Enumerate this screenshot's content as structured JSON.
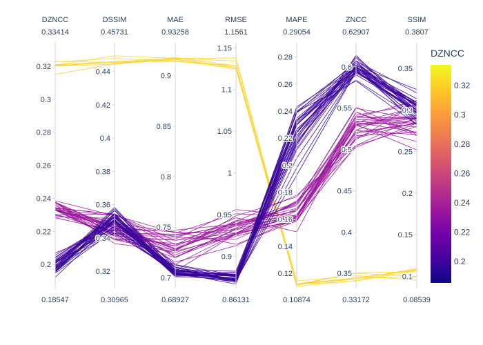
{
  "chart_data": {
    "type": "parallel_coordinates",
    "dimensions": [
      {
        "label": "DZNCC",
        "min": "0.18547",
        "max": "0.33414",
        "range": [
          0.18547,
          0.33414
        ],
        "ticks": [
          "0.2",
          "0.22",
          "0.24",
          "0.26",
          "0.28",
          "0.3",
          "0.32"
        ]
      },
      {
        "label": "DSSIM",
        "min": "0.30965",
        "max": "0.45731",
        "range": [
          0.30965,
          0.45731
        ],
        "ticks": [
          "0.32",
          "0.34",
          "0.36",
          "0.38",
          "0.4",
          "0.42",
          "0.44"
        ]
      },
      {
        "label": "MAE",
        "min": "0.68927",
        "max": "0.93258",
        "range": [
          0.68927,
          0.93258
        ],
        "ticks": [
          "0.7",
          "0.75",
          "0.8",
          "0.85",
          "0.9"
        ]
      },
      {
        "label": "RMSE",
        "min": "0.86131",
        "max": "1.1561",
        "range": [
          0.86131,
          1.1561
        ],
        "ticks": [
          "0.9",
          "0.95",
          "1",
          "1.05",
          "1.1",
          "1.15"
        ]
      },
      {
        "label": "MAPE",
        "min": "0.10874",
        "max": "0.29054",
        "range": [
          0.10874,
          0.29054
        ],
        "ticks": [
          "0.12",
          "0.14",
          "0.16",
          "0.18",
          "0.2",
          "0.22",
          "0.24",
          "0.26",
          "0.28"
        ]
      },
      {
        "label": "ZNCC",
        "min": "0.33172",
        "max": "0.62907",
        "range": [
          0.33172,
          0.62907
        ],
        "ticks": [
          "0.35",
          "0.4",
          "0.45",
          "0.5",
          "0.55",
          "0.6"
        ]
      },
      {
        "label": "SSIM",
        "min": "0.08539",
        "max": "0.3807",
        "range": [
          0.08539,
          0.3807
        ],
        "ticks": [
          "0.1",
          "0.15",
          "0.2",
          "0.25",
          "0.3",
          "0.35"
        ]
      }
    ],
    "groups": [
      {
        "count": 8,
        "center": [
          0.32,
          0.445,
          0.915,
          1.13,
          0.112,
          0.345,
          0.105
        ],
        "spread": [
          0.008,
          0.008,
          0.012,
          0.015,
          0.003,
          0.012,
          0.02
        ]
      },
      {
        "count": 30,
        "center": [
          0.235,
          0.345,
          0.73,
          0.935,
          0.165,
          0.53,
          0.28
        ],
        "spread": [
          0.008,
          0.015,
          0.025,
          0.03,
          0.022,
          0.04,
          0.035
        ]
      },
      {
        "count": 35,
        "center": [
          0.2,
          0.352,
          0.705,
          0.875,
          0.22,
          0.6,
          0.3
        ],
        "spread": [
          0.009,
          0.012,
          0.01,
          0.012,
          0.04,
          0.02,
          0.03
        ]
      }
    ],
    "colorbar": {
      "title": "DZNCC",
      "ticks": [
        "0.2",
        "0.22",
        "0.24",
        "0.26",
        "0.28",
        "0.3",
        "0.32"
      ],
      "colorscale": [
        "#0d0887",
        "#46039f",
        "#7201a8",
        "#9c179e",
        "#bd3786",
        "#d8576b",
        "#ed7953",
        "#fb9f3a",
        "#fdca26",
        "#f0f921"
      ]
    }
  }
}
